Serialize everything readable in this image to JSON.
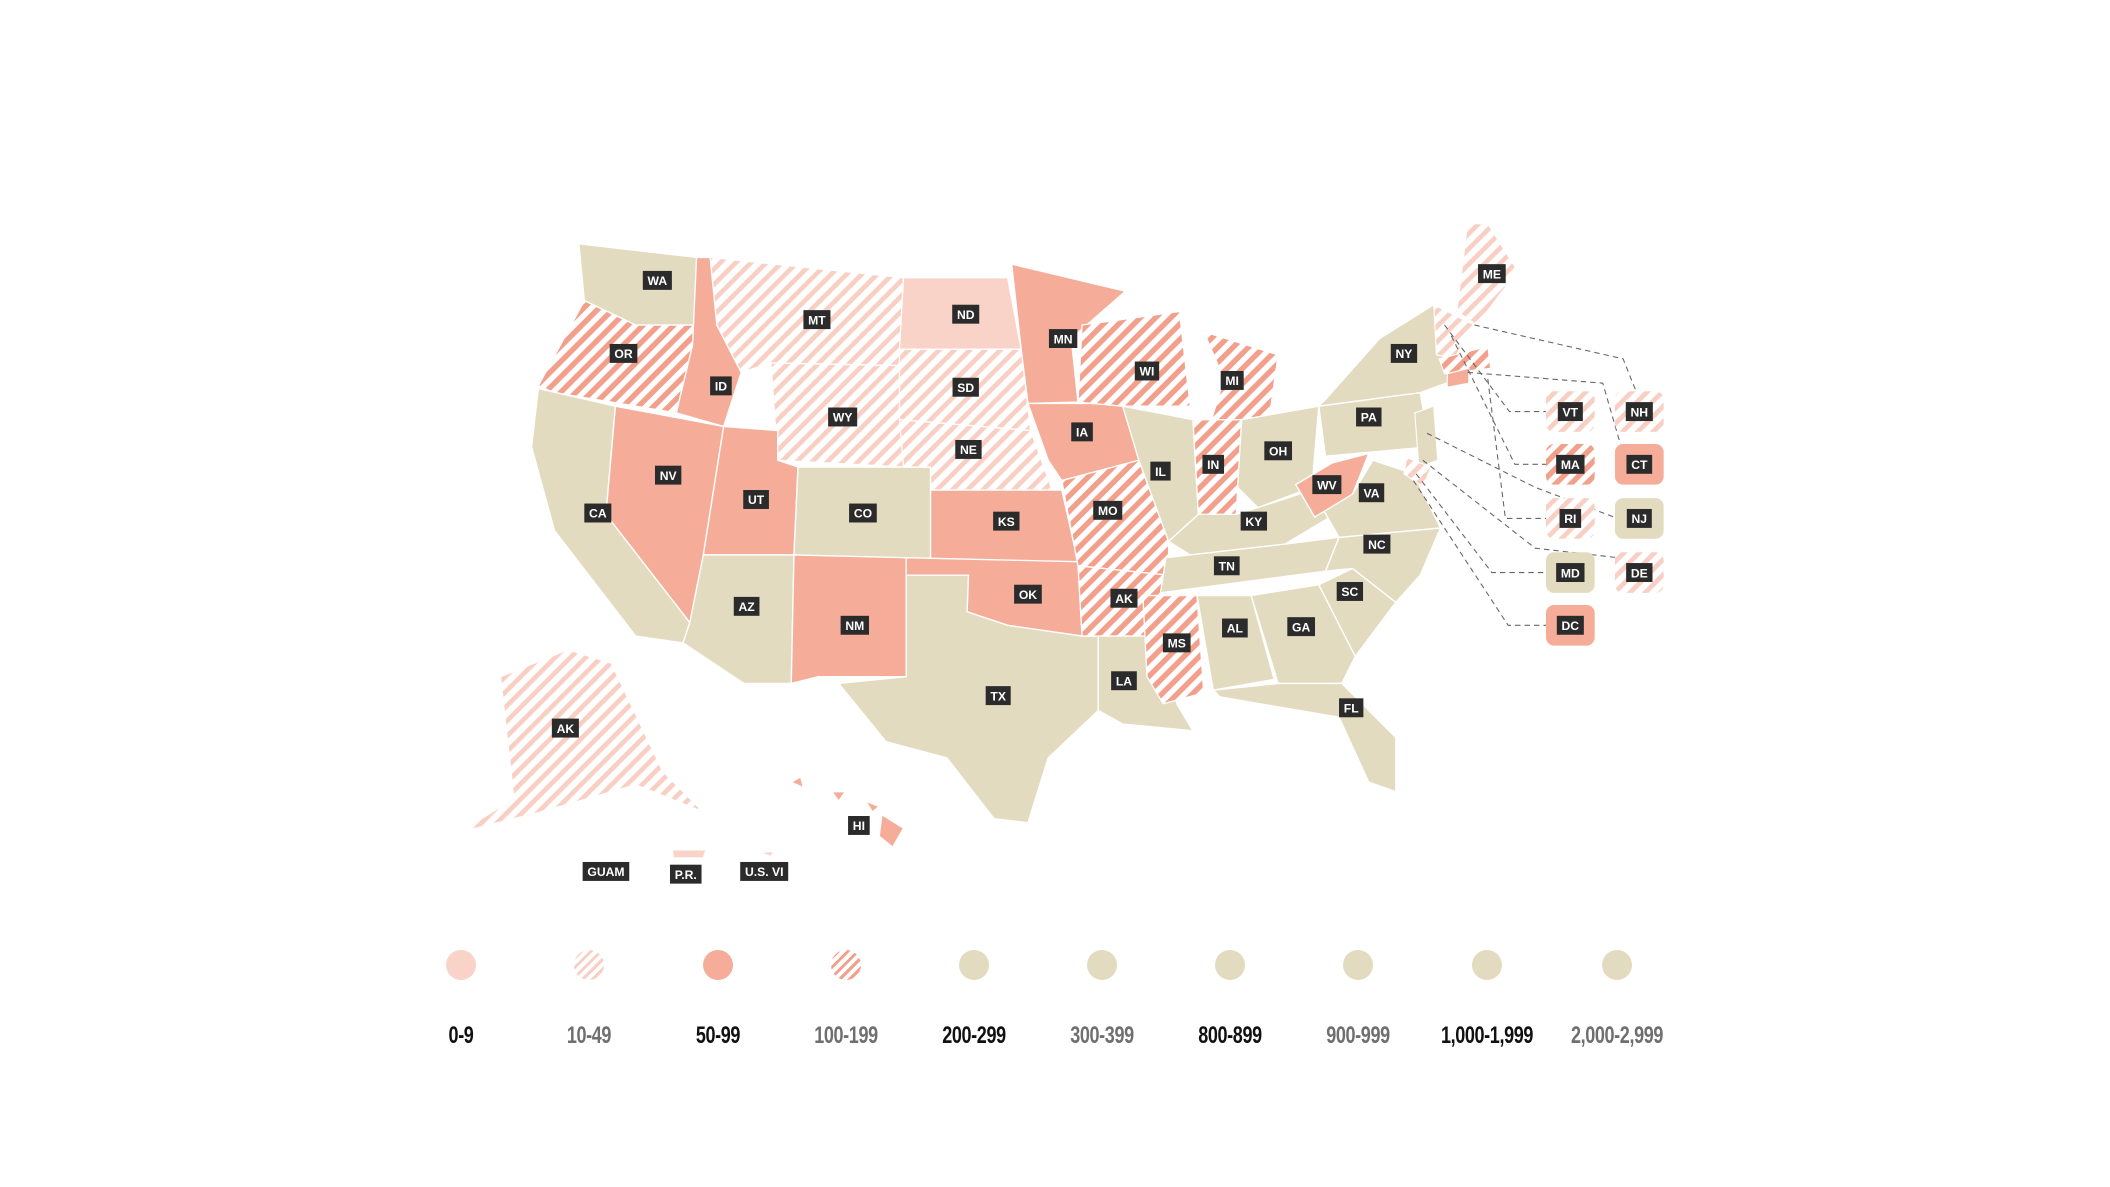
{
  "colors": {
    "range_0_9": "#f9d3c8",
    "salmon": "#f5ad9a",
    "tan": "#e3dbbf",
    "label_bg": "#2b2b2b"
  },
  "legend": [
    {
      "label": "0-9",
      "style": "light"
    },
    {
      "label": "10-49",
      "style": "light-hatch"
    },
    {
      "label": "50-99",
      "style": "salmon"
    },
    {
      "label": "100-199",
      "style": "salmon-hatch"
    },
    {
      "label": "200-299",
      "style": "tan"
    },
    {
      "label": "300-399",
      "style": "tan"
    },
    {
      "label": "800-899",
      "style": "tan"
    },
    {
      "label": "900-999",
      "style": "tan"
    },
    {
      "label": "1,000-1,999",
      "style": "tan"
    },
    {
      "label": "2,000-2,999",
      "style": "tan"
    }
  ],
  "states": [
    {
      "label": "WA",
      "style": "tan"
    },
    {
      "label": "OR",
      "style": "salmon-hatch"
    },
    {
      "label": "CA",
      "style": "tan"
    },
    {
      "label": "NV",
      "style": "salmon"
    },
    {
      "label": "ID",
      "style": "salmon"
    },
    {
      "label": "MT",
      "style": "light-hatch"
    },
    {
      "label": "WY",
      "style": "light-hatch"
    },
    {
      "label": "UT",
      "style": "salmon"
    },
    {
      "label": "AZ",
      "style": "tan"
    },
    {
      "label": "CO",
      "style": "tan"
    },
    {
      "label": "NM",
      "style": "salmon"
    },
    {
      "label": "ND",
      "style": "light"
    },
    {
      "label": "SD",
      "style": "light-hatch"
    },
    {
      "label": "NE",
      "style": "light-hatch"
    },
    {
      "label": "KS",
      "style": "salmon"
    },
    {
      "label": "OK",
      "style": "salmon"
    },
    {
      "label": "TX",
      "style": "tan"
    },
    {
      "label": "MN",
      "style": "salmon"
    },
    {
      "label": "IA",
      "style": "salmon"
    },
    {
      "label": "MO",
      "style": "salmon-hatch"
    },
    {
      "label": "AK",
      "style": "salmon-hatch"
    },
    {
      "label": "LA",
      "style": "tan"
    },
    {
      "label": "WI",
      "style": "salmon-hatch"
    },
    {
      "label": "MI",
      "style": "salmon-hatch"
    },
    {
      "label": "IL",
      "style": "tan"
    },
    {
      "label": "IN",
      "style": "salmon-hatch"
    },
    {
      "label": "OH",
      "style": "tan"
    },
    {
      "label": "KY",
      "style": "tan"
    },
    {
      "label": "TN",
      "style": "tan"
    },
    {
      "label": "MS",
      "style": "salmon-hatch"
    },
    {
      "label": "AL",
      "style": "tan"
    },
    {
      "label": "GA",
      "style": "tan"
    },
    {
      "label": "FL",
      "style": "tan"
    },
    {
      "label": "SC",
      "style": "tan"
    },
    {
      "label": "NC",
      "style": "tan"
    },
    {
      "label": "VA",
      "style": "tan"
    },
    {
      "label": "WV",
      "style": "salmon"
    },
    {
      "label": "PA",
      "style": "tan"
    },
    {
      "label": "NY",
      "style": "tan"
    },
    {
      "label": "ME",
      "style": "light-hatch"
    },
    {
      "label": "AK",
      "style": "light-hatch"
    },
    {
      "label": "HI",
      "style": "salmon"
    },
    {
      "label": "GUAM",
      "style": "none"
    },
    {
      "label": "P.R.",
      "style": "light"
    },
    {
      "label": "U.S. VI",
      "style": "light"
    }
  ],
  "insets": [
    {
      "label": "VT",
      "style": "light-hatch"
    },
    {
      "label": "NH",
      "style": "light-hatch"
    },
    {
      "label": "MA",
      "style": "salmon-hatch"
    },
    {
      "label": "CT",
      "style": "salmon"
    },
    {
      "label": "RI",
      "style": "light-hatch"
    },
    {
      "label": "NJ",
      "style": "tan"
    },
    {
      "label": "MD",
      "style": "tan"
    },
    {
      "label": "DE",
      "style": "light-hatch"
    },
    {
      "label": "DC",
      "style": "salmon"
    }
  ]
}
